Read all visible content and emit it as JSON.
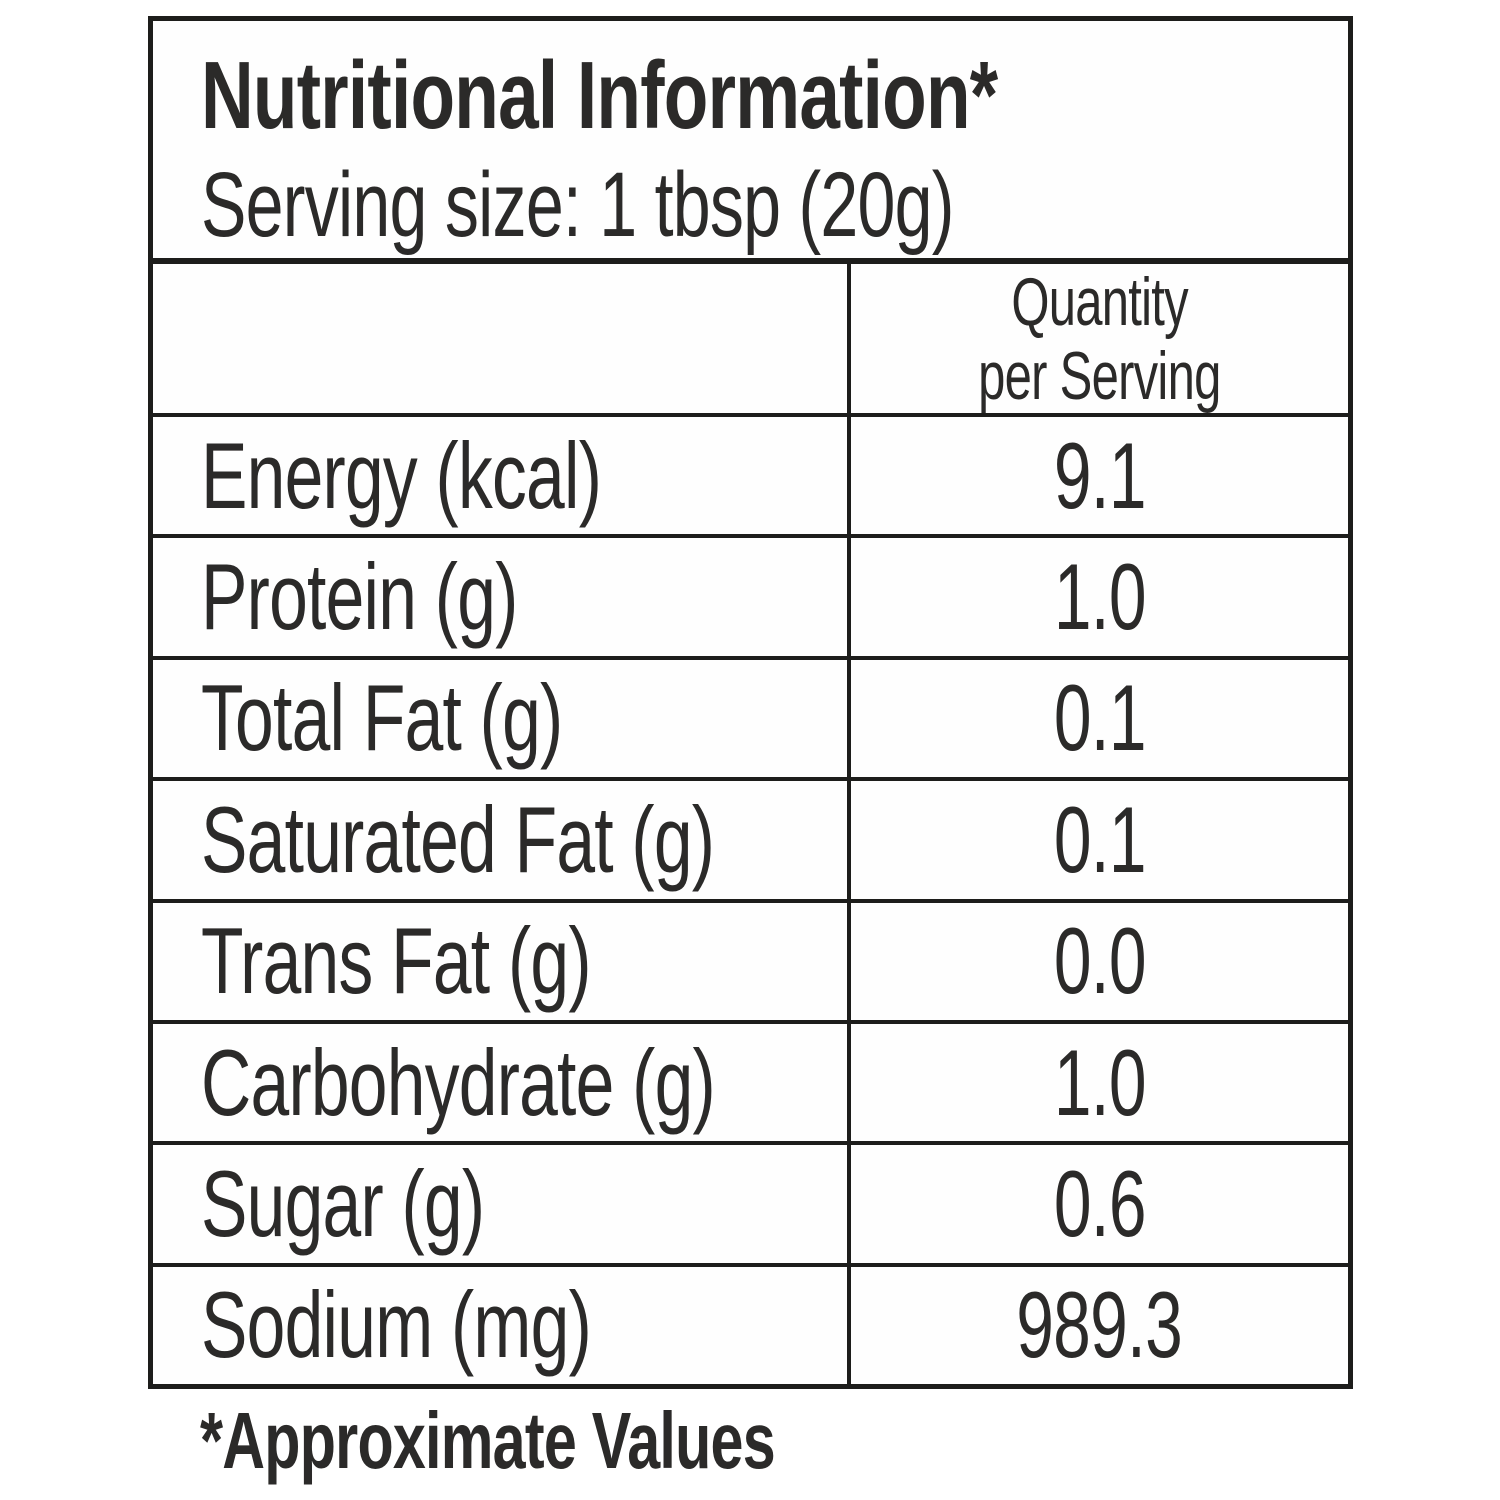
{
  "header": {
    "title": "Nutritional Information*",
    "serving_size": "Serving size: 1 tbsp (20g)"
  },
  "table": {
    "column_header": {
      "line1": "Quantity",
      "line2": "per Serving"
    },
    "rows": [
      {
        "label": "Energy (kcal)",
        "value": "9.1"
      },
      {
        "label": "Protein (g)",
        "value": "1.0"
      },
      {
        "label": "Total Fat (g)",
        "value": "0.1"
      },
      {
        "label": "Saturated Fat (g)",
        "value": "0.1"
      },
      {
        "label": "Trans Fat (g)",
        "value": "0.0"
      },
      {
        "label": "Carbohydrate (g)",
        "value": "1.0"
      },
      {
        "label": "Sugar (g)",
        "value": "0.6"
      },
      {
        "label": "Sodium (mg)",
        "value": "989.3"
      }
    ]
  },
  "footer": {
    "note": "*Approximate Values"
  },
  "colors": {
    "text": "#2b2a29",
    "border": "#1d1d1b",
    "background": "#ffffff"
  }
}
